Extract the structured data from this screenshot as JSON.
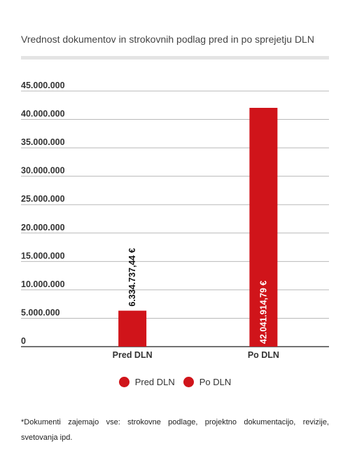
{
  "title": "Vrednost dokumentov in strokovnih podlag pred in po sprejetju DLN",
  "colors": {
    "bar": "#d0141a",
    "grid": "#b9b9b9",
    "axis": "#444444"
  },
  "chart_data": {
    "type": "bar",
    "categories": [
      "Pred DLN",
      "Po DLN"
    ],
    "values": [
      6334737.44,
      42041914.79
    ],
    "data_labels": [
      "6.334.737,44 €",
      "42.041.914,79 €"
    ],
    "ylim": [
      0,
      45000000
    ],
    "yticks": [
      0,
      5000000,
      10000000,
      15000000,
      20000000,
      25000000,
      30000000,
      35000000,
      40000000,
      45000000
    ],
    "ytick_labels": [
      "0",
      "5.000.000",
      "10.000.000",
      "15.000.000",
      "20.000.000",
      "25.000.000",
      "30.000.000",
      "35.000.000",
      "40.000.000",
      "45.000.000"
    ],
    "grid": true,
    "legend": {
      "position": "bottom",
      "entries": [
        "Pred DLN",
        "Po DLN"
      ]
    }
  },
  "footnote": "*Dokumenti zajemajo vse: strokovne podlage, projektno dokumentacijo, revizije, svetovanja ipd."
}
